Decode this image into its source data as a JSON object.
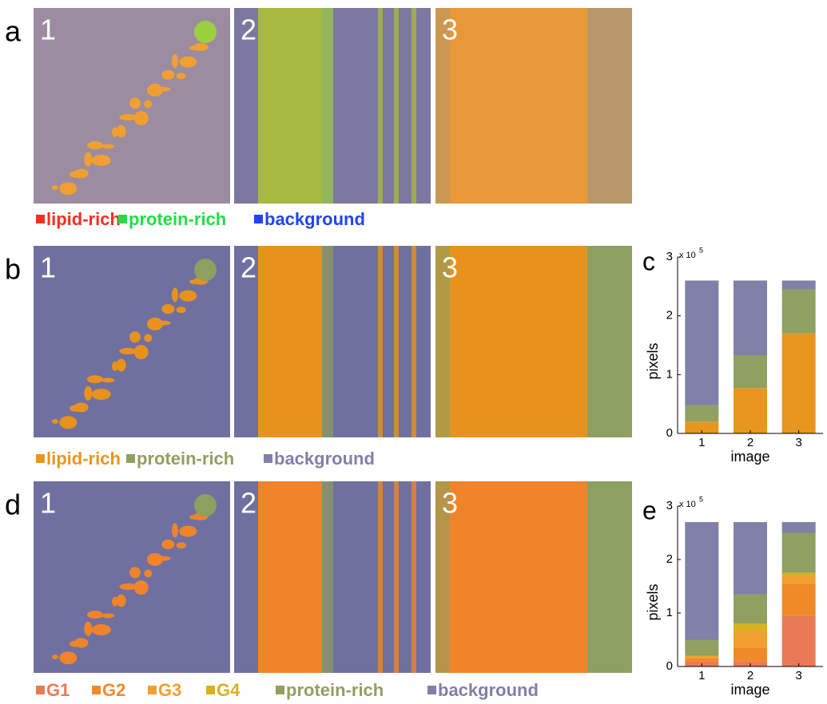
{
  "panel_labels": [
    "a",
    "b",
    "d"
  ],
  "image_labels": [
    "1",
    "2",
    "3"
  ],
  "legends": [
    {
      "items": [
        {
          "text": "lipid-rich",
          "color": "#f03020"
        },
        {
          "text": "protein-rich",
          "color": "#22dd44"
        },
        {
          "text": "background",
          "color": "#2244ee"
        }
      ]
    },
    {
      "items": [
        {
          "text": "lipid-rich",
          "color": "#e8961e"
        },
        {
          "text": "protein-rich",
          "color": "#8fa060"
        },
        {
          "text": "background",
          "color": "#8080a8"
        }
      ]
    },
    {
      "items": [
        {
          "text": "G1",
          "color": "#e87a58"
        },
        {
          "text": "G2",
          "color": "#f08a28"
        },
        {
          "text": "G3",
          "color": "#f0a030"
        },
        {
          "text": "G4",
          "color": "#d8b020"
        },
        {
          "text": "protein-rich",
          "color": "#8fa060"
        },
        {
          "text": "background",
          "color": "#8080a8"
        }
      ]
    }
  ],
  "chart_data": [
    {
      "type": "bar",
      "stacked": true,
      "panel_label": "c",
      "ylabel": "pixels",
      "xlabel": "image",
      "y_multiplier": "x 10",
      "y_exponent": "5",
      "categories": [
        "1",
        "2",
        "3"
      ],
      "ylim": [
        0,
        3
      ],
      "yticks": [
        0,
        1,
        2,
        3
      ],
      "series": [
        {
          "name": "lipid-rich",
          "color": "#e8961e",
          "values": [
            0.2,
            0.77,
            1.7
          ]
        },
        {
          "name": "protein-rich",
          "color": "#8fa060",
          "values": [
            0.28,
            0.56,
            0.75
          ]
        },
        {
          "name": "background",
          "color": "#8080a8",
          "values": [
            2.12,
            1.27,
            0.15
          ]
        }
      ]
    },
    {
      "type": "bar",
      "stacked": true,
      "panel_label": "e",
      "ylabel": "pixels",
      "xlabel": "image",
      "y_multiplier": "x 10",
      "y_exponent": "5",
      "categories": [
        "1",
        "2",
        "3"
      ],
      "ylim": [
        0,
        3
      ],
      "yticks": [
        0,
        1,
        2,
        3
      ],
      "series": [
        {
          "name": "G1",
          "color": "#e87a58",
          "values": [
            0.1,
            0.1,
            0.95
          ]
        },
        {
          "name": "G2",
          "color": "#f08a28",
          "values": [
            0.05,
            0.25,
            0.6
          ]
        },
        {
          "name": "G3",
          "color": "#f0a030",
          "values": [
            0.05,
            0.3,
            0.15
          ]
        },
        {
          "name": "G4",
          "color": "#d8b020",
          "values": [
            0,
            0.15,
            0.05
          ]
        },
        {
          "name": "protein-rich",
          "color": "#8fa060",
          "values": [
            0.3,
            0.55,
            0.75
          ]
        },
        {
          "name": "background",
          "color": "#8080a8",
          "values": [
            2.2,
            1.35,
            0.2
          ]
        }
      ]
    }
  ]
}
